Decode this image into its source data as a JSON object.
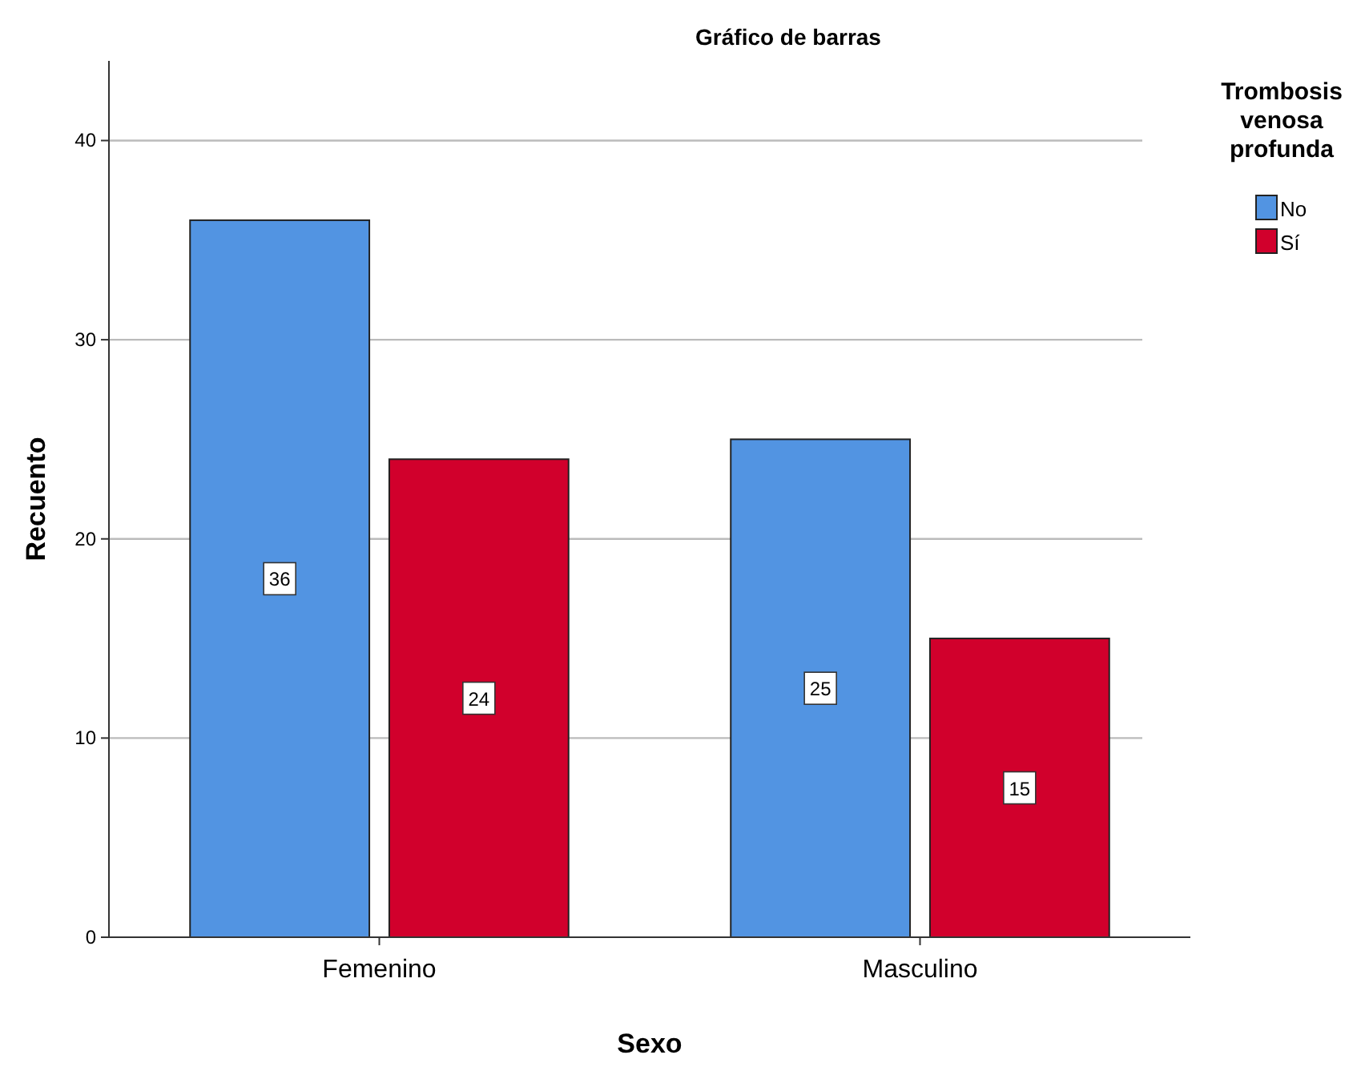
{
  "chart_data": {
    "type": "bar",
    "title": "Gráfico de barras",
    "xlabel": "Sexo",
    "ylabel": "Recuento",
    "legend_title": "Trombosis venosa profunda",
    "categories": [
      "Femenino",
      "Masculino"
    ],
    "series": [
      {
        "name": "No",
        "color": "#5294e2",
        "values": [
          36,
          25
        ]
      },
      {
        "name": "Sí",
        "color": "#d1002c",
        "values": [
          24,
          15
        ]
      }
    ],
    "ylim": [
      0,
      44
    ],
    "yticks": [
      0,
      10,
      20,
      30,
      40
    ],
    "grid": "y",
    "legend": "top right",
    "data_labels": true
  }
}
